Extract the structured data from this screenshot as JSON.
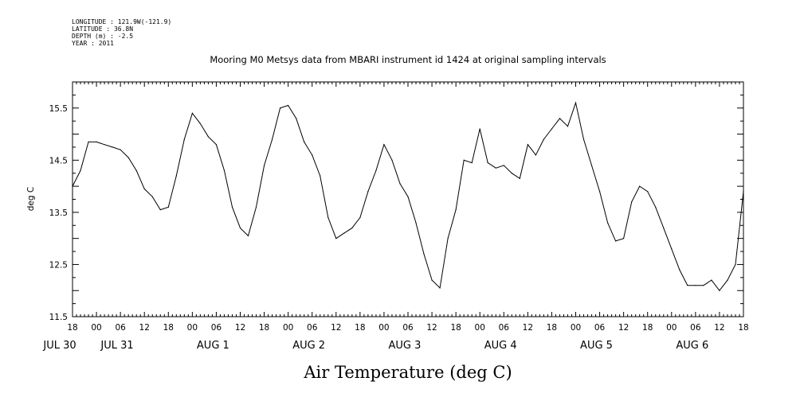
{
  "header": {
    "longitude": "LONGITUDE : 121.9W(-121.9)",
    "latitude": "LATITUDE : 36.8N",
    "depth": "DEPTH (m) : -2.5",
    "year": "YEAR : 2011"
  },
  "chart_data": {
    "type": "line",
    "title": "Mooring M0 Metsys data from MBARI instrument id 1424 at original sampling intervals",
    "xlabel": "Air Temperature (deg C)",
    "ylabel": "deg C",
    "xlim_hours": [
      0,
      168
    ],
    "ylim": [
      11.5,
      16.0
    ],
    "y_ticks": [
      {
        "value": 11.5,
        "label": "11.5"
      },
      {
        "value": 12.5,
        "label": "12.5"
      },
      {
        "value": 13.5,
        "label": "13.5"
      },
      {
        "value": 14.5,
        "label": "14.5"
      },
      {
        "value": 15.5,
        "label": "15.5"
      }
    ],
    "x_hour_ticks": [
      "18",
      "00",
      "06",
      "12",
      "18",
      "00",
      "06",
      "12",
      "18",
      "00",
      "06",
      "12",
      "18",
      "00",
      "06",
      "12",
      "18",
      "00",
      "06",
      "12",
      "18",
      "00",
      "06",
      "12",
      "18",
      "00",
      "06",
      "12",
      "18"
    ],
    "day_labels": [
      "JUL 30",
      "JUL 31",
      "AUG  1",
      "AUG  2",
      "AUG  3",
      "AUG  4",
      "AUG  5",
      "AUG  6"
    ],
    "grid": false,
    "series": [
      {
        "x": [
          "2011-07-30 18:00",
          "2011-07-30 20:00",
          "2011-07-30 22:00",
          "2011-07-31 00:00",
          "2011-07-31 02:00",
          "2011-07-31 04:00",
          "2011-07-31 06:00",
          "2011-07-31 08:00",
          "2011-07-31 10:00",
          "2011-07-31 12:00",
          "2011-07-31 14:00",
          "2011-07-31 16:00",
          "2011-07-31 18:00",
          "2011-07-31 20:00",
          "2011-07-31 22:00",
          "2011-08-01 00:00",
          "2011-08-01 02:00",
          "2011-08-01 04:00",
          "2011-08-01 06:00",
          "2011-08-01 08:00",
          "2011-08-01 10:00",
          "2011-08-01 12:00",
          "2011-08-01 14:00",
          "2011-08-01 16:00",
          "2011-08-01 18:00",
          "2011-08-01 20:00",
          "2011-08-01 22:00",
          "2011-08-02 00:00",
          "2011-08-02 02:00",
          "2011-08-02 04:00",
          "2011-08-02 06:00",
          "2011-08-02 08:00",
          "2011-08-02 10:00",
          "2011-08-02 12:00",
          "2011-08-02 14:00",
          "2011-08-02 16:00",
          "2011-08-02 18:00",
          "2011-08-02 20:00",
          "2011-08-02 22:00",
          "2011-08-03 00:00",
          "2011-08-03 02:00",
          "2011-08-03 04:00",
          "2011-08-03 06:00",
          "2011-08-03 08:00",
          "2011-08-03 10:00",
          "2011-08-03 12:00",
          "2011-08-03 14:00",
          "2011-08-03 16:00",
          "2011-08-03 18:00",
          "2011-08-03 20:00",
          "2011-08-03 22:00",
          "2011-08-04 00:00",
          "2011-08-04 02:00",
          "2011-08-04 04:00",
          "2011-08-04 06:00",
          "2011-08-04 08:00",
          "2011-08-04 10:00",
          "2011-08-04 12:00",
          "2011-08-04 14:00",
          "2011-08-04 16:00",
          "2011-08-04 18:00",
          "2011-08-04 20:00",
          "2011-08-04 22:00",
          "2011-08-05 00:00",
          "2011-08-05 02:00",
          "2011-08-05 04:00",
          "2011-08-05 06:00",
          "2011-08-05 08:00",
          "2011-08-05 10:00",
          "2011-08-05 12:00",
          "2011-08-05 14:00",
          "2011-08-05 16:00",
          "2011-08-05 18:00",
          "2011-08-05 20:00",
          "2011-08-05 22:00",
          "2011-08-06 00:00",
          "2011-08-06 02:00",
          "2011-08-06 04:00",
          "2011-08-06 06:00",
          "2011-08-06 08:00",
          "2011-08-06 10:00",
          "2011-08-06 12:00",
          "2011-08-06 14:00",
          "2011-08-06 16:00",
          "2011-08-06 18:00"
        ],
        "values": [
          14.0,
          14.3,
          14.85,
          14.85,
          14.8,
          14.75,
          14.7,
          14.55,
          14.3,
          13.95,
          13.8,
          13.55,
          13.6,
          14.2,
          14.9,
          15.4,
          15.2,
          14.95,
          14.8,
          14.3,
          13.6,
          13.2,
          13.05,
          13.6,
          14.4,
          14.9,
          15.5,
          15.55,
          15.3,
          14.85,
          14.6,
          14.2,
          13.4,
          13.0,
          13.1,
          13.2,
          13.4,
          13.9,
          14.3,
          14.8,
          14.5,
          14.05,
          13.8,
          13.3,
          12.7,
          12.2,
          12.05,
          13.0,
          13.55,
          14.5,
          14.45,
          15.1,
          14.45,
          14.35,
          14.4,
          14.25,
          14.15,
          14.8,
          14.6,
          14.9,
          15.1,
          15.3,
          15.15,
          15.6,
          14.9,
          14.4,
          13.9,
          13.3,
          12.95,
          13.0,
          13.7,
          14.0,
          13.9,
          13.6,
          13.2,
          12.8,
          12.4,
          12.1,
          12.1,
          12.1,
          12.2,
          12.0,
          12.2,
          12.5,
          13.9
        ]
      }
    ]
  }
}
